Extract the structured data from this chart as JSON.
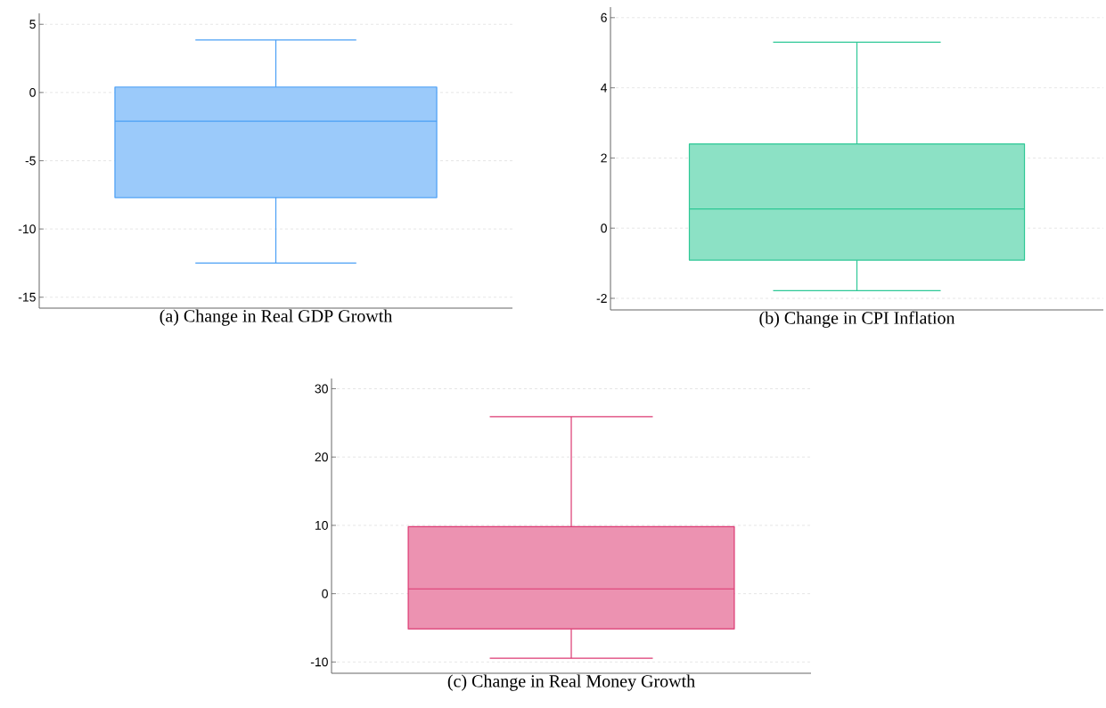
{
  "chart_data": [
    {
      "type": "box",
      "xlabel": "(a) Change in Real GDP Growth",
      "categories": [
        null
      ],
      "color": "#4a9ff5",
      "boxes": [
        {
          "low": -12.5,
          "q1": -7.7,
          "median": -2.1,
          "q3": 0.4,
          "high": 3.85
        }
      ],
      "ylim": [
        -15.8,
        5.8
      ],
      "yticks": [
        -15,
        -10,
        -5,
        0,
        5
      ],
      "grid": "y",
      "tick_labels": "y"
    },
    {
      "type": "box",
      "xlabel": "(b) Change in CPI Inflation",
      "categories": [
        null
      ],
      "color": "#2ec896",
      "boxes": [
        {
          "low": -1.78,
          "q1": -0.91,
          "median": 0.55,
          "q3": 2.4,
          "high": 5.3
        }
      ],
      "ylim": [
        -2.33,
        6.3
      ],
      "yticks": [
        -2,
        0,
        2,
        4,
        6
      ],
      "grid": "y",
      "tick_labels": "y"
    },
    {
      "type": "box",
      "xlabel": "(c) Change in Real Money Growth",
      "categories": [
        null
      ],
      "color": "#dc3872",
      "boxes": [
        {
          "low": -9.45,
          "q1": -5.15,
          "median": 0.7,
          "q3": 9.8,
          "high": 25.9
        }
      ],
      "ylim": [
        -11.65,
        31.5
      ],
      "yticks": [
        -10,
        0,
        10,
        20,
        30
      ],
      "grid": "y",
      "tick_labels": "y"
    }
  ]
}
